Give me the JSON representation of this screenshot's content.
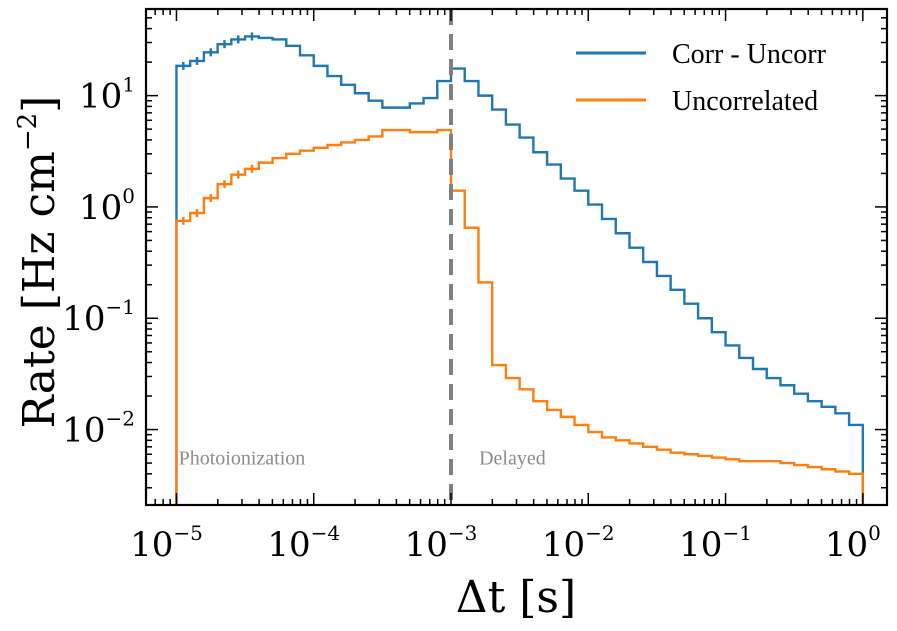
{
  "chart_data": {
    "type": "line",
    "subtype": "step-histogram",
    "title": "",
    "xlabel_symbol": "Δt",
    "xlabel_unit": "[s]",
    "ylabel_main": "Rate [Hz cm",
    "ylabel_sup": "−2",
    "ylabel_close": "]",
    "xscale": "log",
    "yscale": "log",
    "xlim": [
      6e-06,
      1.5
    ],
    "ylim": [
      0.0021,
      60
    ],
    "x_ticks": [
      {
        "value": 1e-05,
        "base": "10",
        "exp": "−5"
      },
      {
        "value": 0.0001,
        "base": "10",
        "exp": "−4"
      },
      {
        "value": 0.001,
        "base": "10",
        "exp": "−3"
      },
      {
        "value": 0.01,
        "base": "10",
        "exp": "−2"
      },
      {
        "value": 0.1,
        "base": "10",
        "exp": "−1"
      },
      {
        "value": 1,
        "base": "10",
        "exp": "0"
      }
    ],
    "y_ticks": [
      {
        "value": 0.01,
        "base": "10",
        "exp": "−2"
      },
      {
        "value": 0.1,
        "base": "10",
        "exp": "−1"
      },
      {
        "value": 1,
        "base": "10",
        "exp": "0"
      },
      {
        "value": 10,
        "base": "10",
        "exp": "1"
      }
    ],
    "bin_edges_log10": [
      -5.0,
      -4.9,
      -4.8,
      -4.7,
      -4.6,
      -4.5,
      -4.4,
      -4.3,
      -4.2,
      -4.1,
      -4.0,
      -3.9,
      -3.8,
      -3.7,
      -3.6,
      -3.5,
      -3.4,
      -3.3,
      -3.2,
      -3.1,
      -3.0,
      -2.9,
      -2.8,
      -2.7,
      -2.6,
      -2.5,
      -2.4,
      -2.3,
      -2.2,
      -2.1,
      -2.0,
      -1.9,
      -1.8,
      -1.7,
      -1.6,
      -1.5,
      -1.4,
      -1.3,
      -1.2,
      -1.1,
      -1.0,
      -0.9,
      -0.8,
      -0.7,
      -0.6,
      -0.5,
      -0.4,
      -0.3,
      -0.2,
      -0.1,
      0.0
    ],
    "series": [
      {
        "name": "Corr - Uncorr",
        "color": "#1f77b4",
        "values": [
          18.5,
          20.5,
          24.5,
          29,
          32,
          34,
          33,
          32,
          28,
          23,
          18.5,
          15,
          12.5,
          10.5,
          9.0,
          7.8,
          7.8,
          8.5,
          9.5,
          13.5,
          17.5,
          13.5,
          10.0,
          7.5,
          5.5,
          4.2,
          3.1,
          2.4,
          1.8,
          1.4,
          1.05,
          0.78,
          0.58,
          0.43,
          0.32,
          0.24,
          0.18,
          0.135,
          0.1,
          0.075,
          0.057,
          0.044,
          0.035,
          0.029,
          0.025,
          0.021,
          0.018,
          0.016,
          0.014,
          0.011
        ]
      },
      {
        "name": "Uncorrelated",
        "color": "#ff7f0e",
        "values": [
          0.75,
          0.88,
          1.2,
          1.6,
          1.95,
          2.2,
          2.5,
          2.75,
          3.0,
          3.2,
          3.4,
          3.6,
          3.8,
          4.0,
          4.3,
          4.9,
          4.9,
          4.7,
          4.7,
          4.9,
          1.4,
          0.65,
          0.21,
          0.038,
          0.029,
          0.023,
          0.018,
          0.015,
          0.013,
          0.011,
          0.0095,
          0.0085,
          0.008,
          0.0075,
          0.007,
          0.0066,
          0.0062,
          0.006,
          0.0058,
          0.0056,
          0.0054,
          0.0052,
          0.0052,
          0.0052,
          0.005,
          0.0048,
          0.0046,
          0.0044,
          0.0042,
          0.004
        ]
      }
    ],
    "vline": {
      "x": 0.001,
      "color": "#808080",
      "style": "dashed"
    },
    "annotations": [
      {
        "text": "Photoionization",
        "x": 3e-05
      },
      {
        "text": "Delayed",
        "x": 0.0028
      }
    ],
    "legend_position": "top-right"
  }
}
